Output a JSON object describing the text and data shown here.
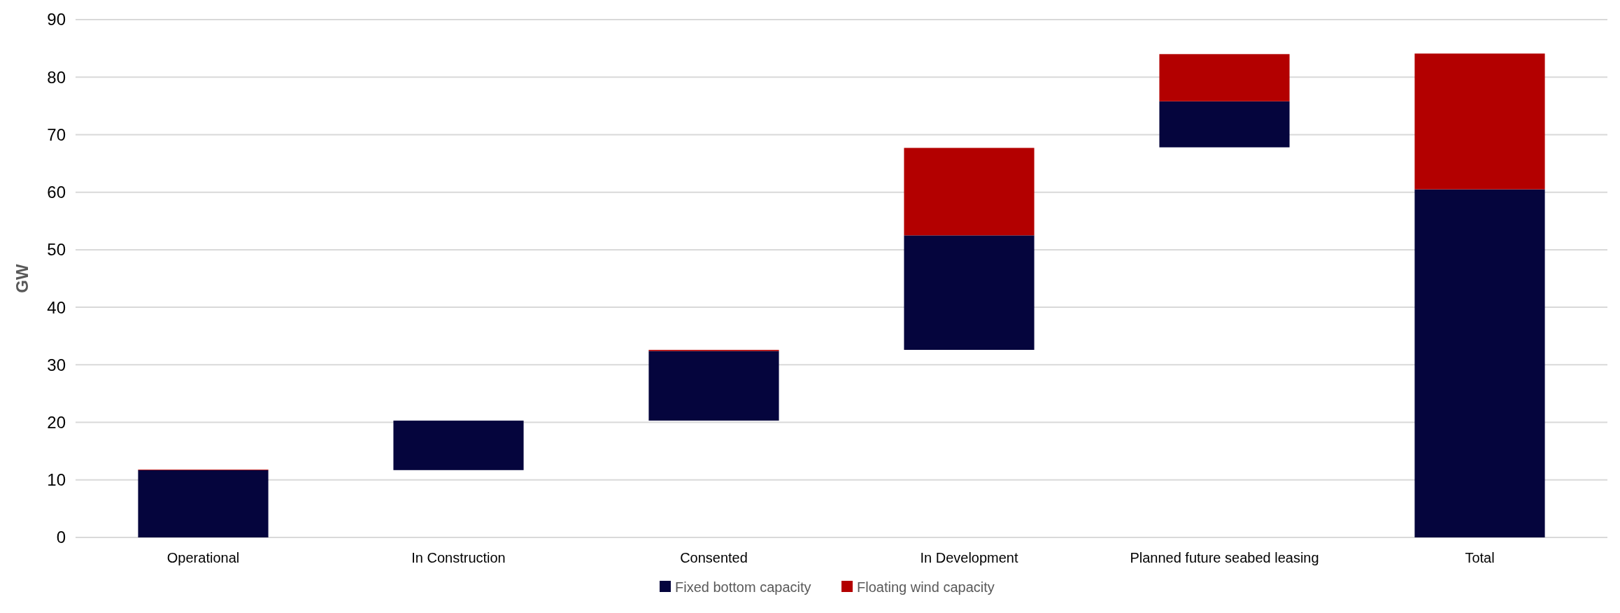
{
  "chart_data": {
    "type": "bar",
    "ylabel": "GW",
    "categories": [
      "Operational",
      "In Construction",
      "Consented",
      "In Development",
      "Planned future seabed leasing",
      "Total"
    ],
    "series": [
      {
        "name": "Fixed bottom capacity",
        "color": "#05053d",
        "base": [
          0,
          11.7,
          20.3,
          32.6,
          67.8,
          0
        ],
        "values": [
          11.7,
          8.6,
          12.1,
          19.9,
          8.0,
          60.5
        ]
      },
      {
        "name": "Floating wind capacity",
        "color": "#b30000",
        "base": [
          11.7,
          null,
          32.4,
          52.5,
          75.8,
          60.5
        ],
        "values": [
          0.1,
          null,
          0.2,
          15.2,
          8.2,
          23.6
        ]
      }
    ],
    "ylim": [
      0,
      90
    ],
    "yticks": [
      0,
      10,
      20,
      30,
      40,
      50,
      60,
      70,
      80,
      90
    ],
    "grid": "y",
    "legend": "bottom"
  }
}
